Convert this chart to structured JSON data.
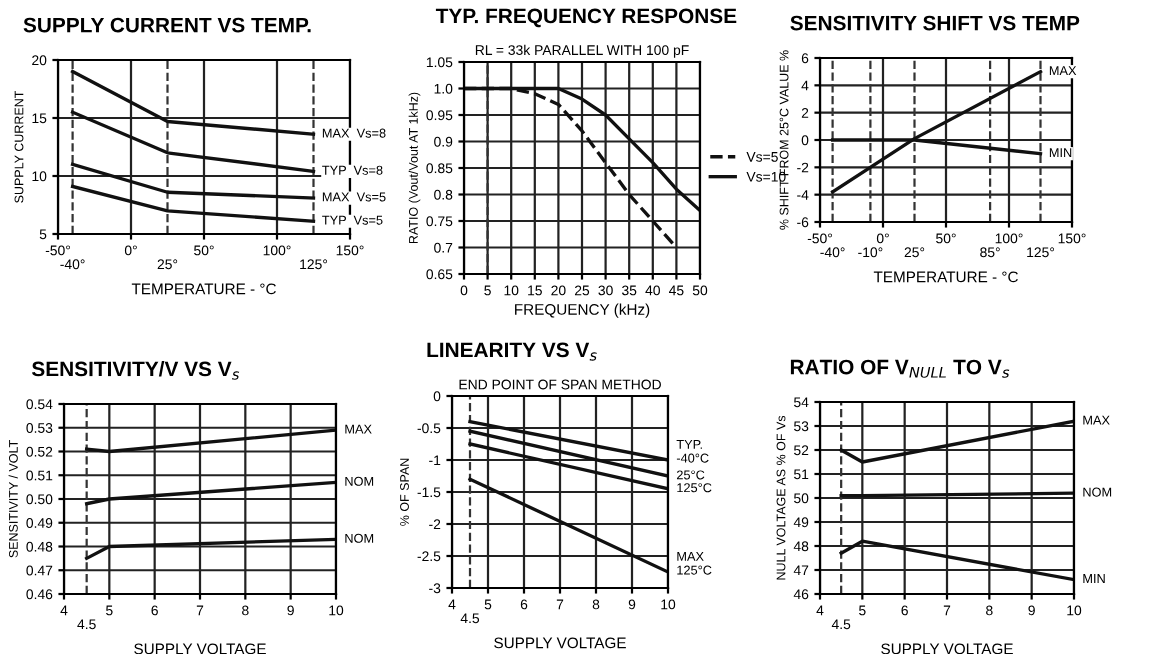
{
  "chart_data": [
    {
      "type": "line",
      "title": "SUPPLY CURRENT VS TEMP.",
      "xlabel": "TEMPERATURE - °C",
      "ylabel": "SUPPLY CURRENT",
      "xlim": [
        -50,
        150
      ],
      "xticks": [
        {
          "value": -50,
          "label": "-50°"
        },
        {
          "value": 0,
          "label": "0°"
        },
        {
          "value": 50,
          "label": "50°"
        },
        {
          "value": 100,
          "label": "100°"
        },
        {
          "value": 150,
          "label": "150°"
        }
      ],
      "ylim": [
        5,
        20
      ],
      "yticks": [
        5,
        10,
        15,
        20
      ],
      "grid": true,
      "legend": false,
      "ref_lines": [
        {
          "axis": "x",
          "value": -40,
          "label": "-40°",
          "line_style": "dashed"
        },
        {
          "axis": "x",
          "value": 25,
          "label": "25°",
          "line_style": "dashed"
        },
        {
          "axis": "x",
          "value": 125,
          "label": "125°",
          "line_style": "dashed"
        }
      ],
      "x": [
        -40,
        25,
        125
      ],
      "series": [
        {
          "name": "MAX  Vs=8",
          "color": "#111111",
          "values": [
            19,
            14.7,
            13.6
          ]
        },
        {
          "name": "TYP  Vs=8",
          "color": "#111111",
          "values": [
            15.5,
            12,
            10.4
          ]
        },
        {
          "name": "MAX  Vs=5",
          "color": "#111111",
          "values": [
            11,
            8.6,
            8.1
          ]
        },
        {
          "name": "TYP  Vs=5",
          "color": "#111111",
          "values": [
            9.1,
            7,
            6.1
          ]
        }
      ]
    },
    {
      "type": "line",
      "title": "TYP. FREQUENCY RESPONSE",
      "subtitle": "RL = 33k PARALLEL WITH 100 pF",
      "xlabel": "FREQUENCY (kHz)",
      "ylabel": "RATIO (Vout/Vout AT 1kHz)",
      "xlim": [
        0,
        50
      ],
      "xticks": [
        0,
        5,
        10,
        15,
        20,
        25,
        30,
        35,
        40,
        45,
        50
      ],
      "ylim": [
        0.65,
        1.05
      ],
      "yticks": [
        0.65,
        0.7,
        0.75,
        0.8,
        0.85,
        0.9,
        0.95,
        {
          "value": 1.0,
          "label": "1.0"
        },
        1.05
      ],
      "grid": true,
      "legend": "right",
      "ref_lines": [
        {
          "axis": "x",
          "value": 5,
          "line_style": "dashed"
        }
      ],
      "series": [
        {
          "name": "Vs=5",
          "color": "#111111",
          "line_style": "dashed",
          "x": [
            0,
            10,
            15,
            20,
            25,
            30,
            35,
            40,
            45
          ],
          "values": [
            1.0,
            1.0,
            0.99,
            0.97,
            0.92,
            0.86,
            0.8,
            0.75,
            0.7
          ]
        },
        {
          "name": "Vs=10",
          "color": "#111111",
          "line_style": "solid",
          "x": [
            0,
            10,
            20,
            25,
            30,
            35,
            40,
            45,
            50
          ],
          "values": [
            1.0,
            1.0,
            1.0,
            0.98,
            0.95,
            0.905,
            0.86,
            0.81,
            0.77
          ]
        }
      ]
    },
    {
      "type": "line",
      "title": "SENSITIVITY SHIFT VS TEMP",
      "xlabel": "TEMPERATURE - °C",
      "ylabel": "% SHIFT FROM 25°C VALUE %",
      "xlim": [
        -50,
        150
      ],
      "xticks": [
        {
          "value": -50,
          "label": "-50°"
        },
        {
          "value": 0,
          "label": "0°"
        },
        {
          "value": 50,
          "label": "50°"
        },
        {
          "value": 100,
          "label": "100°"
        },
        {
          "value": 150,
          "label": "150°"
        }
      ],
      "ylim": [
        -6,
        6
      ],
      "yticks": [
        -6,
        -4,
        -2,
        0,
        2,
        4,
        6
      ],
      "grid": true,
      "legend": false,
      "ref_lines": [
        {
          "axis": "x",
          "value": -40,
          "label": "-40°",
          "line_style": "dashed"
        },
        {
          "axis": "x",
          "value": -10,
          "label": "-10°",
          "line_style": "dashed"
        },
        {
          "axis": "x",
          "value": 25,
          "label": "25°",
          "line_style": "dashed"
        },
        {
          "axis": "x",
          "value": 85,
          "label": "85°",
          "line_style": "dashed"
        },
        {
          "axis": "x",
          "value": 125,
          "label": "125°",
          "line_style": "dashed"
        }
      ],
      "x": [
        -40,
        25,
        125
      ],
      "series": [
        {
          "name": "MAX",
          "color": "#111111",
          "values": [
            -3.8,
            0.1,
            5
          ]
        },
        {
          "name": "MIN",
          "color": "#111111",
          "values": [
            0,
            0,
            -1
          ]
        }
      ]
    },
    {
      "type": "line",
      "title": "SENSITIVITY/V VS V$_{s}$",
      "xlabel": "SUPPLY VOLTAGE",
      "ylabel": "SENSITIVITY / VOLT",
      "xlim": [
        4,
        10
      ],
      "xticks": [
        4,
        5,
        6,
        7,
        8,
        9,
        10
      ],
      "ylim": [
        0.46,
        0.54
      ],
      "yticks": [
        0.46,
        0.47,
        0.48,
        0.49,
        {
          "value": 0.5,
          "label": "0.50"
        },
        0.51,
        0.52,
        0.53,
        0.54
      ],
      "grid": true,
      "legend": false,
      "ref_lines": [
        {
          "axis": "x",
          "value": 4.5,
          "label": "4.5",
          "line_style": "dashed"
        }
      ],
      "x": [
        4.5,
        5,
        10
      ],
      "series": [
        {
          "name": "MAX",
          "color": "#111111",
          "values": [
            0.521,
            0.52,
            0.529
          ]
        },
        {
          "name": "NOM",
          "color": "#111111",
          "values": [
            0.498,
            0.5,
            0.507
          ]
        },
        {
          "name": "NOM",
          "color": "#111111",
          "values": [
            0.475,
            0.48,
            0.483
          ]
        }
      ]
    },
    {
      "type": "line",
      "title": "LINEARITY VS V$_{s}$",
      "subtitle": "END POINT OF SPAN METHOD",
      "xlabel": "SUPPLY VOLTAGE",
      "ylabel": "% OF SPAN",
      "xlim": [
        4,
        10
      ],
      "xticks": [
        4,
        5,
        6,
        7,
        8,
        9,
        10
      ],
      "ylim": [
        -3,
        0
      ],
      "yticks": [
        -3,
        -2.5,
        -2,
        -1.5,
        -1,
        -0.5,
        0
      ],
      "grid": true,
      "legend": false,
      "ref_lines": [
        {
          "axis": "x",
          "value": 4.5,
          "label": "4.5",
          "line_style": "dashed"
        }
      ],
      "x": [
        4.5,
        10
      ],
      "series": [
        {
          "name": "TYP.\n-40°C",
          "color": "#111111",
          "values": [
            -0.4,
            -1.0
          ]
        },
        {
          "name": "25°C",
          "color": "#111111",
          "values": [
            -0.55,
            -1.25
          ]
        },
        {
          "name": "125°C",
          "color": "#111111",
          "values": [
            -0.75,
            -1.45
          ]
        },
        {
          "name": "MAX\n125°C",
          "color": "#111111",
          "values": [
            -1.3,
            -2.75
          ]
        }
      ]
    },
    {
      "type": "line",
      "title": "RATIO OF V$_{NULL}$ TO V$_{s}$",
      "xlabel": "SUPPLY VOLTAGE",
      "ylabel": "NULL VOLTAGE AS % OF Vs",
      "xlim": [
        4,
        10
      ],
      "xticks": [
        4,
        5,
        6,
        7,
        8,
        9,
        10
      ],
      "ylim": [
        46,
        54
      ],
      "yticks": [
        46,
        47,
        48,
        49,
        50,
        51,
        52,
        53,
        54
      ],
      "grid": true,
      "legend": false,
      "ref_lines": [
        {
          "axis": "x",
          "value": 4.5,
          "label": "4.5",
          "line_style": "dashed"
        }
      ],
      "x": [
        4.5,
        5,
        10
      ],
      "series": [
        {
          "name": "MAX",
          "color": "#111111",
          "values": [
            52,
            51.5,
            53.2
          ]
        },
        {
          "name": "NOM",
          "color": "#111111",
          "values": [
            50.1,
            50.1,
            50.2
          ]
        },
        {
          "name": "MIN",
          "color": "#111111",
          "values": [
            47.7,
            48.2,
            46.6
          ]
        }
      ]
    }
  ]
}
